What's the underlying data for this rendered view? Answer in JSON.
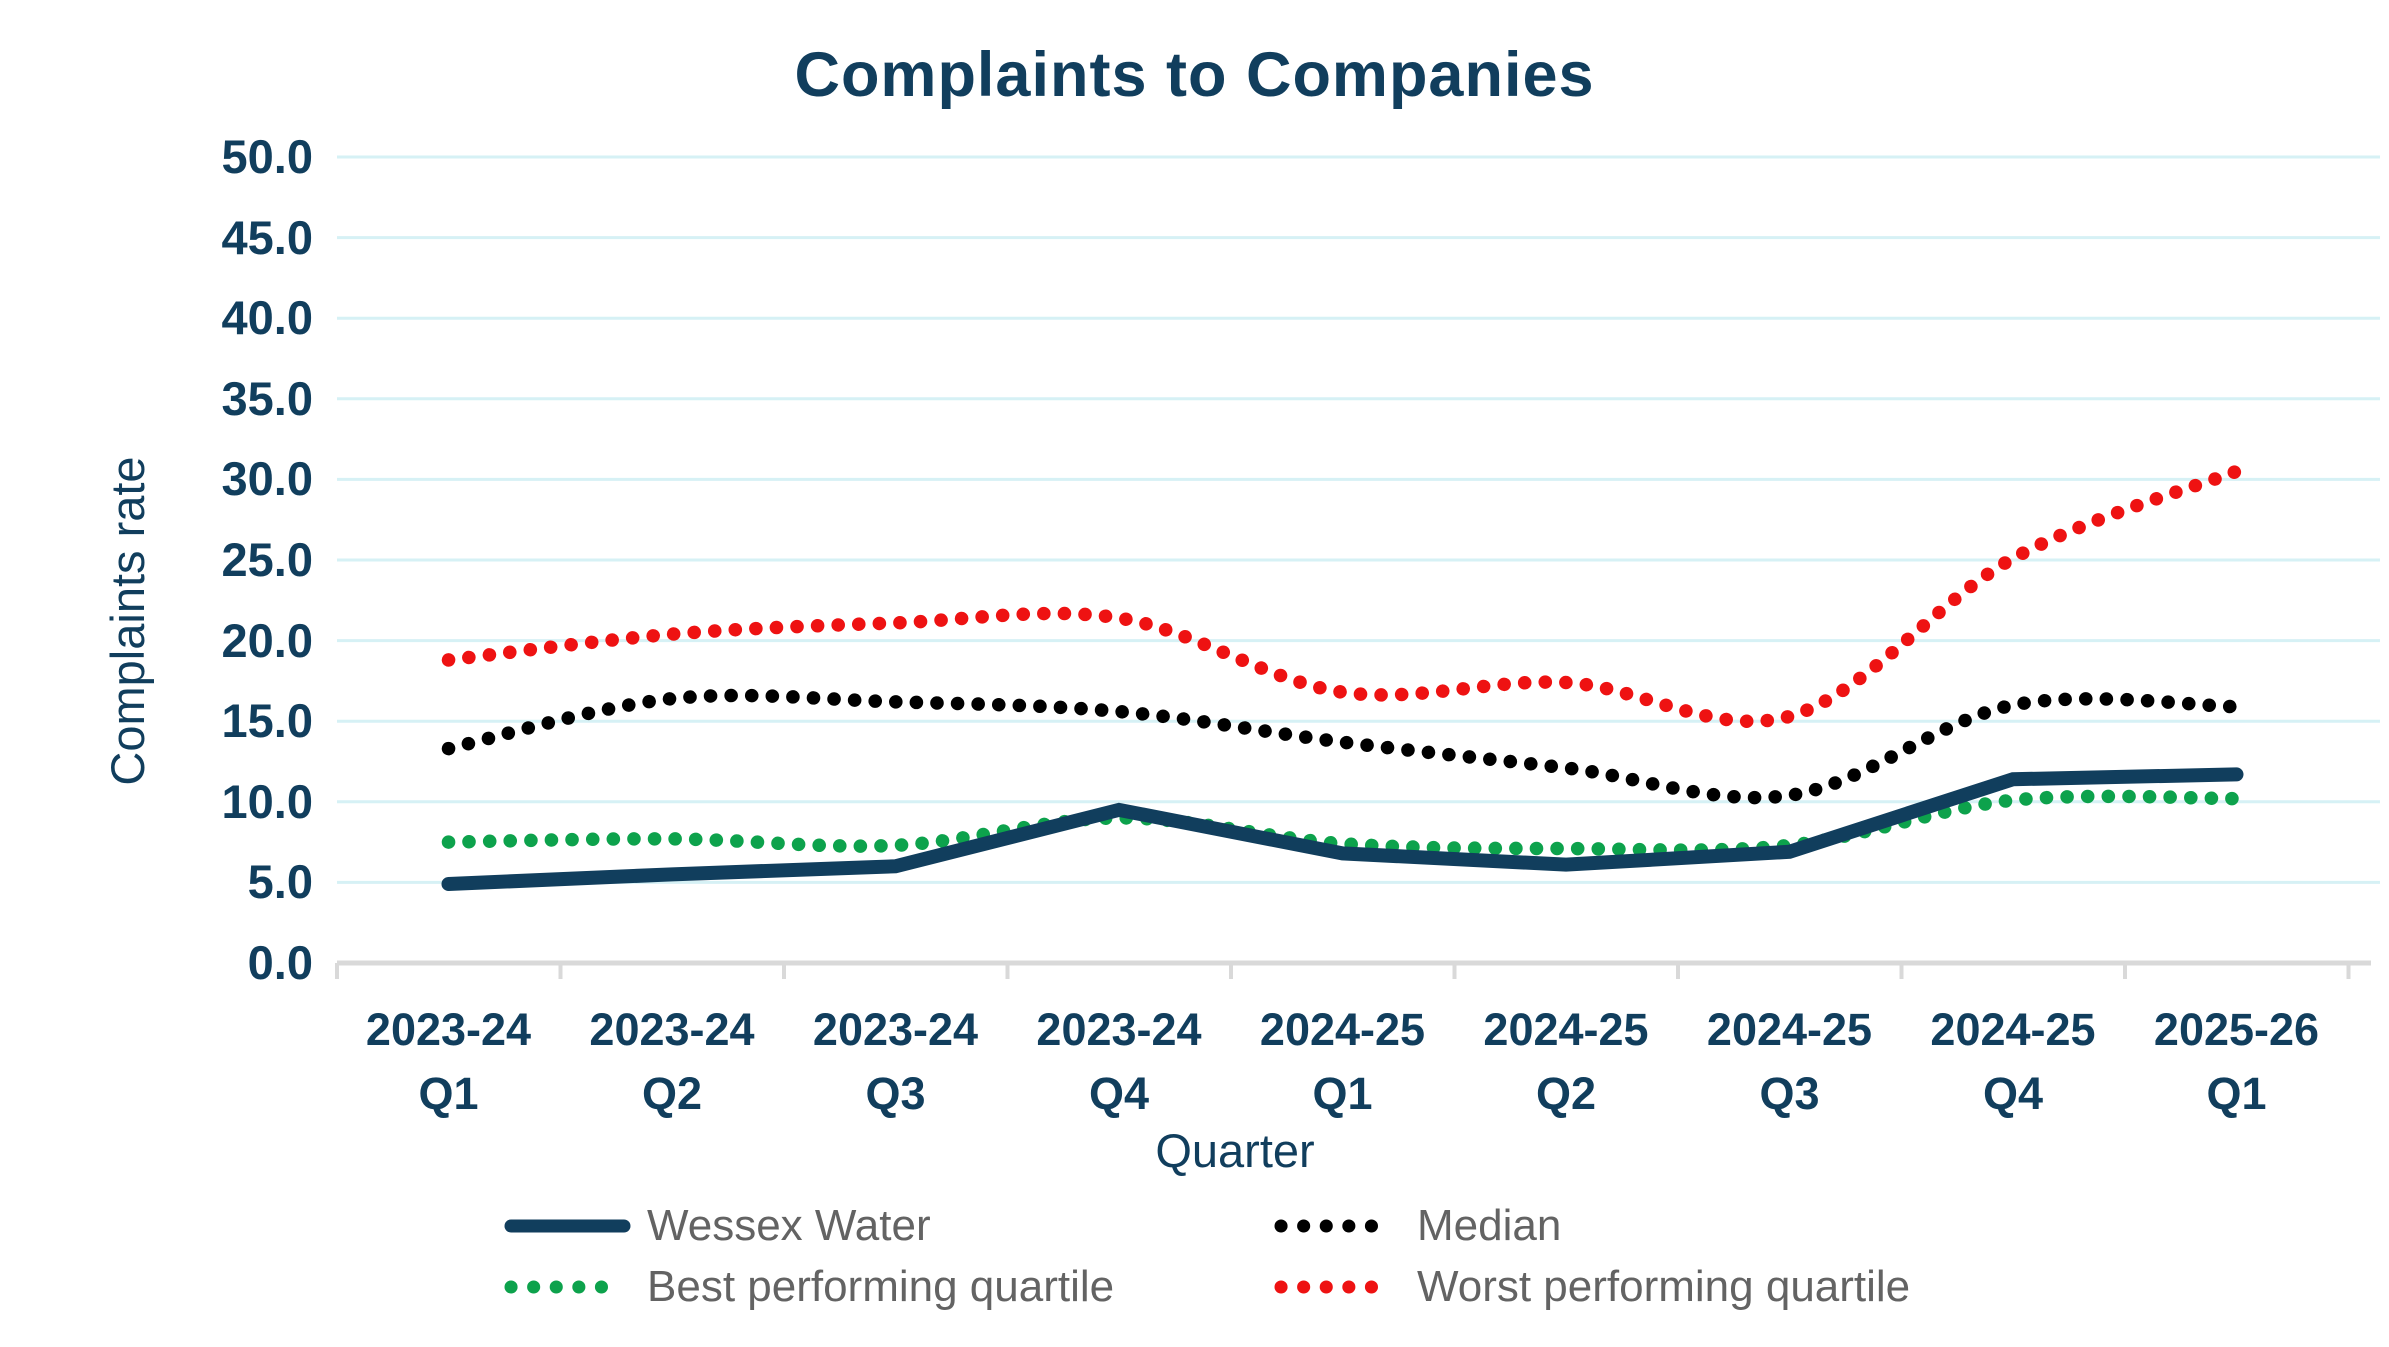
{
  "title": "Complaints to Companies",
  "y_axis": {
    "label": "Complaints rate",
    "ticks": [
      "50.0",
      "45.0",
      "40.0",
      "35.0",
      "30.0",
      "25.0",
      "20.0",
      "15.0",
      "10.0",
      "5.0",
      "0.0"
    ]
  },
  "x_axis": {
    "label": "Quarter",
    "categories": [
      [
        "2023-24",
        "Q1"
      ],
      [
        "2023-24",
        "Q2"
      ],
      [
        "2023-24",
        "Q3"
      ],
      [
        "2023-24",
        "Q4"
      ],
      [
        "2024-25",
        "Q1"
      ],
      [
        "2024-25",
        "Q2"
      ],
      [
        "2024-25",
        "Q3"
      ],
      [
        "2024-25",
        "Q4"
      ],
      [
        "2025-26",
        "Q1"
      ]
    ]
  },
  "legend": [
    {
      "label": "Wessex Water",
      "style": "solid",
      "color": "#113e5d"
    },
    {
      "label": "Median",
      "style": "dotted",
      "color": "#000000"
    },
    {
      "label": "Best performing quartile",
      "style": "dotted",
      "color": "#0da24c"
    },
    {
      "label": "Worst performing quartile",
      "style": "dotted",
      "color": "#ee1212"
    }
  ],
  "colors": {
    "navy": "#113e5d",
    "grid": "#d6f1f5",
    "axis": "#d9d9d9",
    "legend_text": "#636363"
  },
  "chart_data": {
    "type": "line",
    "title": "Complaints to Companies",
    "xlabel": "Quarter",
    "ylabel": "Complaints rate",
    "ylim": [
      0,
      50
    ],
    "grid_step": 5,
    "grid": true,
    "legend_position": "bottom",
    "categories": [
      "2023-24 Q1",
      "2023-24 Q2",
      "2023-24 Q3",
      "2023-24 Q4",
      "2024-25 Q1",
      "2024-25 Q2",
      "2024-25 Q3",
      "2024-25 Q4",
      "2025-26 Q1"
    ],
    "series": [
      {
        "name": "Wessex Water",
        "color": "#113e5d",
        "style": "solid",
        "values": [
          4.9,
          5.5,
          6.0,
          9.5,
          6.8,
          6.1,
          6.9,
          11.4,
          11.7
        ]
      },
      {
        "name": "Median",
        "color": "#000000",
        "style": "dotted",
        "values": [
          13.3,
          16.4,
          16.2,
          15.6,
          13.7,
          12.1,
          10.4,
          16.0,
          15.9
        ]
      },
      {
        "name": "Best performing quartile",
        "color": "#0da24c",
        "style": "dotted",
        "values": [
          7.5,
          7.7,
          7.3,
          9.0,
          7.4,
          7.1,
          7.3,
          10.1,
          10.2
        ]
      },
      {
        "name": "Worst performing quartile",
        "color": "#ee1212",
        "style": "dotted",
        "values": [
          18.8,
          20.4,
          21.1,
          21.4,
          16.8,
          17.4,
          15.3,
          25.1,
          30.5
        ]
      }
    ]
  }
}
